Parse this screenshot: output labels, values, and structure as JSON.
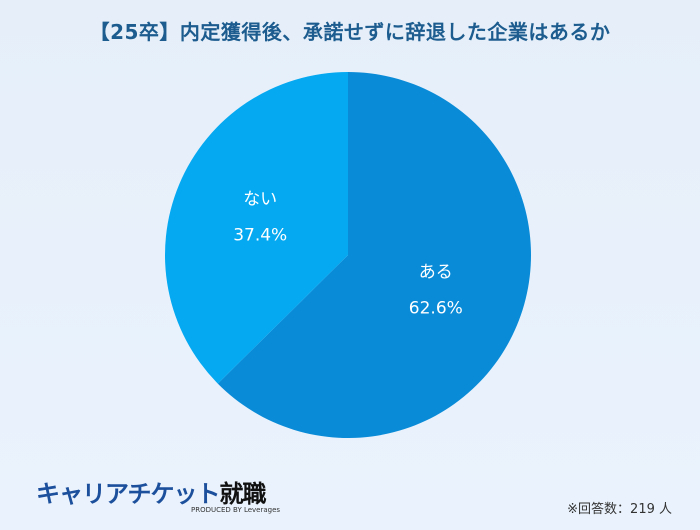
{
  "title": "【25卒】内定獲得後、承諾せずに辞退した企業はあるか",
  "chart_data": {
    "type": "pie",
    "title": "【25卒】内定獲得後、承諾せずに辞退した企業はあるか",
    "slices": [
      {
        "label": "ある",
        "value": 62.6,
        "value_label": "62.6%",
        "color": "#0a8bd8"
      },
      {
        "label": "ない",
        "value": 37.4,
        "value_label": "37.4%",
        "color": "#04a9f2"
      }
    ],
    "start": "top",
    "direction": "clockwise"
  },
  "logo": {
    "main": "キャリアチケット",
    "main_kanji": "就職",
    "sub": "PRODUCED BY Leverages"
  },
  "note": "※回答数：219 人"
}
